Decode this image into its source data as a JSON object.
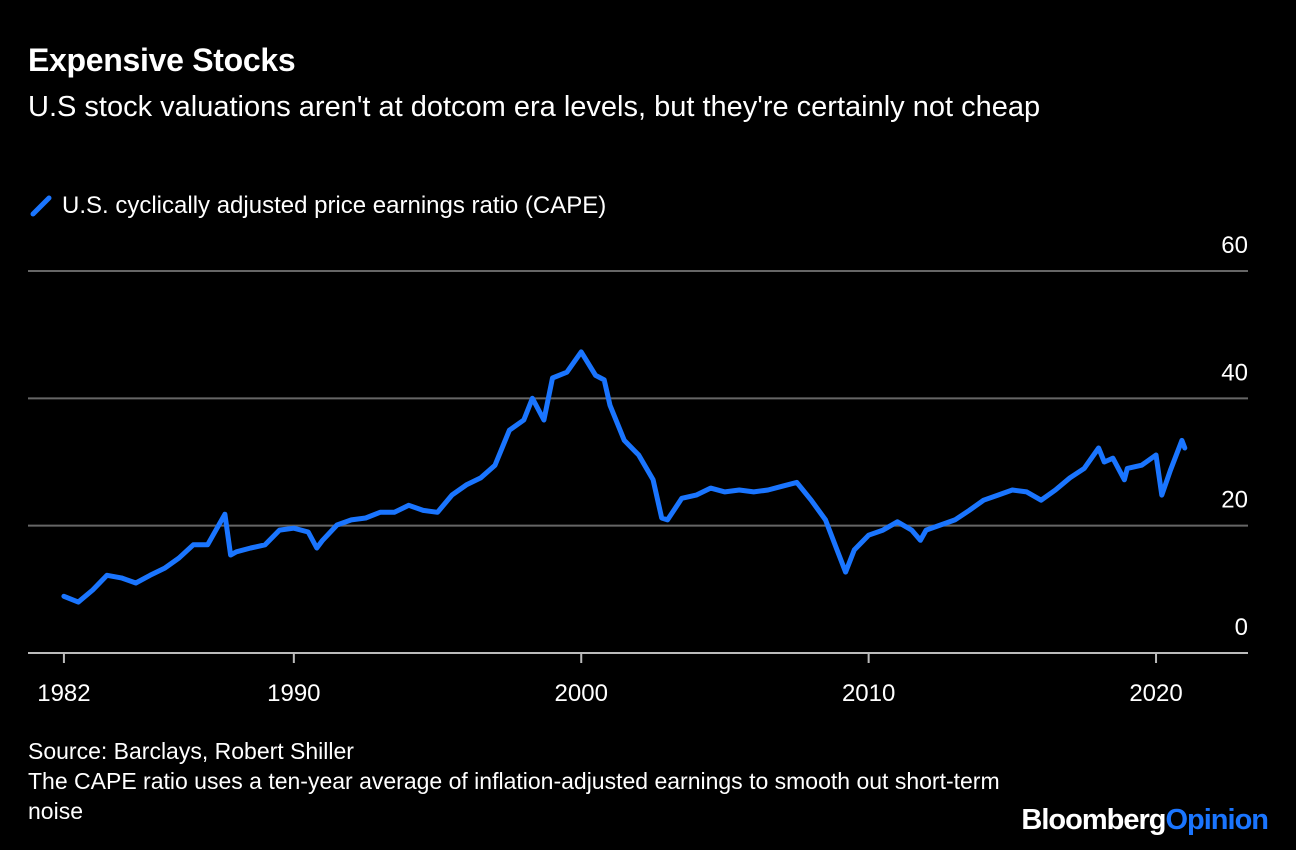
{
  "chart_data": {
    "type": "line",
    "title": "Expensive Stocks",
    "subtitle": "U.S stock valuations aren't at dotcom era levels, but they're certainly not cheap",
    "source": "Source: Barclays, Robert Shiller",
    "note": "The CAPE ratio uses a ten-year average of inflation-adjusted earnings to smooth out short-term noise",
    "brand": [
      "Bloomberg",
      "Opinion"
    ],
    "brand_colors": [
      "#ffffff",
      "#1a75ff"
    ],
    "x": [
      1982.0,
      1982.5,
      1983.0,
      1983.5,
      1984.0,
      1984.5,
      1985.0,
      1985.5,
      1986.0,
      1986.5,
      1987.0,
      1987.6,
      1987.8,
      1988.0,
      1988.5,
      1989.0,
      1989.5,
      1990.0,
      1990.5,
      1990.8,
      1991.0,
      1991.5,
      1992.0,
      1992.5,
      1993.0,
      1993.5,
      1994.0,
      1994.5,
      1995.0,
      1995.5,
      1996.0,
      1996.5,
      1997.0,
      1997.5,
      1998.0,
      1998.3,
      1998.7,
      1999.0,
      1999.5,
      2000.0,
      2000.5,
      2000.8,
      2001.0,
      2001.5,
      2002.0,
      2002.5,
      2002.8,
      2003.0,
      2003.5,
      2004.0,
      2004.5,
      2005.0,
      2005.5,
      2006.0,
      2006.5,
      2007.0,
      2007.5,
      2008.0,
      2008.5,
      2008.9,
      2009.2,
      2009.5,
      2010.0,
      2010.5,
      2011.0,
      2011.5,
      2011.8,
      2012.0,
      2012.5,
      2013.0,
      2013.5,
      2014.0,
      2014.5,
      2015.0,
      2015.5,
      2016.0,
      2016.5,
      2017.0,
      2017.5,
      2018.0,
      2018.2,
      2018.5,
      2018.9,
      2019.0,
      2019.5,
      2020.0,
      2020.2,
      2020.5,
      2020.9,
      2021.0
    ],
    "series": [
      {
        "name": "U.S. cyclically adjusted price earnings ratio (CAPE)",
        "color": "#1a75ff",
        "values": [
          8.9,
          8.0,
          9.9,
          12.2,
          11.8,
          11.0,
          12.2,
          13.3,
          14.9,
          17.0,
          17.0,
          21.8,
          15.4,
          15.9,
          16.5,
          17.0,
          19.3,
          19.6,
          19.0,
          16.5,
          17.7,
          20.1,
          20.9,
          21.2,
          22.1,
          22.1,
          23.2,
          22.4,
          22.1,
          24.8,
          26.4,
          27.5,
          29.5,
          35.0,
          36.6,
          40.0,
          36.6,
          43.2,
          44.1,
          47.3,
          43.6,
          42.9,
          38.9,
          33.4,
          31.1,
          27.2,
          21.2,
          20.9,
          24.3,
          24.8,
          25.9,
          25.3,
          25.6,
          25.3,
          25.6,
          26.2,
          26.8,
          24.0,
          20.9,
          16.2,
          12.7,
          16.2,
          18.5,
          19.3,
          20.6,
          19.3,
          17.7,
          19.3,
          20.1,
          20.9,
          22.4,
          24.0,
          24.8,
          25.6,
          25.3,
          24.0,
          25.6,
          27.5,
          29.0,
          32.2,
          30.0,
          30.6,
          27.2,
          29.0,
          29.5,
          31.1,
          24.8,
          28.7,
          33.4,
          32.2
        ]
      }
    ],
    "xlim": [
      1980.75,
      2023.2
    ],
    "xticks": [
      1982,
      1990,
      2000,
      2010,
      2020
    ],
    "ylim": [
      0,
      60
    ],
    "yticks": [
      0,
      20,
      40,
      60
    ],
    "grid": true
  }
}
